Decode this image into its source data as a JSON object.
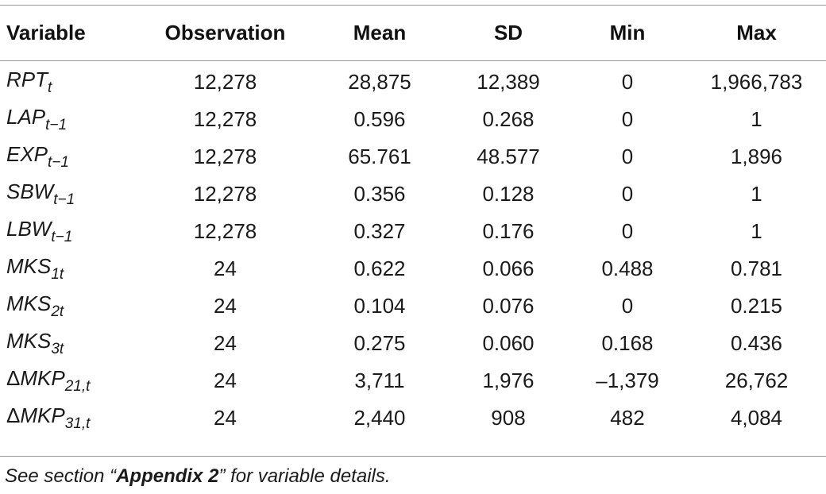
{
  "table": {
    "headers": [
      "Variable",
      "Observation",
      "Mean",
      "SD",
      "Min",
      "Max"
    ],
    "rows": [
      {
        "var": {
          "prefix": "",
          "base": "RPT",
          "sub": "t"
        },
        "observation": "12,278",
        "mean": "28,875",
        "sd": "12,389",
        "min": "0",
        "max": "1,966,783"
      },
      {
        "var": {
          "prefix": "",
          "base": "LAP",
          "sub": "t−1"
        },
        "observation": "12,278",
        "mean": "0.596",
        "sd": "0.268",
        "min": "0",
        "max": "1"
      },
      {
        "var": {
          "prefix": "",
          "base": "EXP",
          "sub": "t−1"
        },
        "observation": "12,278",
        "mean": "65.761",
        "sd": "48.577",
        "min": "0",
        "max": "1,896"
      },
      {
        "var": {
          "prefix": "",
          "base": "SBW",
          "sub": "t−1"
        },
        "observation": "12,278",
        "mean": "0.356",
        "sd": "0.128",
        "min": "0",
        "max": "1"
      },
      {
        "var": {
          "prefix": "",
          "base": "LBW",
          "sub": "t−1"
        },
        "observation": "12,278",
        "mean": "0.327",
        "sd": "0.176",
        "min": "0",
        "max": "1"
      },
      {
        "var": {
          "prefix": "",
          "base": "MKS",
          "sub": "1t"
        },
        "observation": "24",
        "mean": "0.622",
        "sd": "0.066",
        "min": "0.488",
        "max": "0.781"
      },
      {
        "var": {
          "prefix": "",
          "base": "MKS",
          "sub": "2t"
        },
        "observation": "24",
        "mean": "0.104",
        "sd": "0.076",
        "min": "0",
        "max": "0.215"
      },
      {
        "var": {
          "prefix": "",
          "base": "MKS",
          "sub": "3t"
        },
        "observation": "24",
        "mean": "0.275",
        "sd": "0.060",
        "min": "0.168",
        "max": "0.436"
      },
      {
        "var": {
          "prefix": "Δ",
          "base": "MKP",
          "sub": "21,t"
        },
        "observation": "24",
        "mean": "3,711",
        "sd": "1,976",
        "min": "–1,379",
        "max": "26,762"
      },
      {
        "var": {
          "prefix": "Δ",
          "base": "MKP",
          "sub": "31,t"
        },
        "observation": "24",
        "mean": "2,440",
        "sd": "908",
        "min": "482",
        "max": "4,084"
      }
    ]
  },
  "note": {
    "before": "See section “",
    "bold": "Appendix 2",
    "after": "” for variable details."
  }
}
